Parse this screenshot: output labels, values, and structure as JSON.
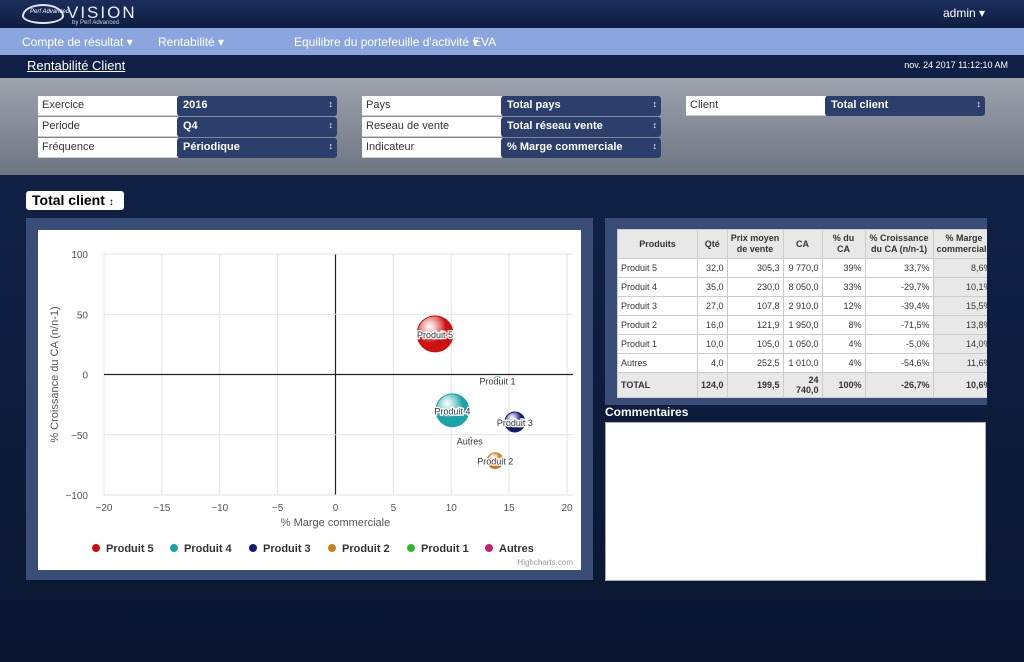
{
  "header": {
    "brand": "Perf Advanced",
    "title": "VISION",
    "subtitle": "by Perf Advanced",
    "user": "admin"
  },
  "nav": [
    "Compte de résultat",
    "Rentabilité",
    "Equilibre du portefeuille d'activité",
    "EVA"
  ],
  "page": {
    "title": "Rentabilité Client",
    "timestamp": "nov. 24 2017 11:12:10 AM"
  },
  "filters": [
    [
      {
        "label": "Exercice",
        "value": "2016"
      },
      {
        "label": "Periode",
        "value": "Q4"
      },
      {
        "label": "Fréquence",
        "value": "Périodique"
      }
    ],
    [
      {
        "label": "Pays",
        "value": "Total pays"
      },
      {
        "label": "Reseau de vente",
        "value": "Total réseau vente"
      },
      {
        "label": "Indicateur",
        "value": "% Marge commerciale"
      }
    ],
    [
      {
        "label": "Client",
        "value": "Total client"
      }
    ]
  ],
  "selector": "Total client",
  "chart_data": {
    "type": "bubble",
    "xlabel": "% Marge commerciale",
    "ylabel": "% Croissance du CA (n/n-1)",
    "xlim": [
      -20,
      20
    ],
    "xticks": [
      {
        "value": -20,
        "label": "−20"
      },
      {
        "value": -15,
        "label": "−15"
      },
      {
        "value": -10,
        "label": "−10"
      },
      {
        "value": -5,
        "label": "−5"
      },
      0,
      5,
      10,
      15,
      20
    ],
    "ylim": [
      -100,
      100
    ],
    "yticks": [
      {
        "value": -100,
        "label": "−100"
      },
      {
        "value": -50,
        "label": "−50"
      },
      0,
      50,
      100
    ],
    "grid": true,
    "series": [
      {
        "name": "Produit 5",
        "color": "#d01010",
        "x": [
          8.6
        ],
        "y": [
          33.7
        ],
        "z": [
          9770
        ]
      },
      {
        "name": "Produit 4",
        "color": "#1aa3a8",
        "x": [
          10.1
        ],
        "y": [
          -29.7
        ],
        "z": [
          8050
        ]
      },
      {
        "name": "Produit 3",
        "color": "#141c6e",
        "x": [
          15.5
        ],
        "y": [
          -39.4
        ],
        "z": [
          2910
        ]
      },
      {
        "name": "Produit 2",
        "color": "#c8801c",
        "x": [
          13.8
        ],
        "y": [
          -71.5
        ],
        "z": [
          1950
        ]
      },
      {
        "name": "Produit 1",
        "color": "#2db82d",
        "x": [
          14.0
        ],
        "y": [
          -5.0
        ],
        "z": [
          1050
        ]
      },
      {
        "name": "Autres",
        "color": "#c8206e",
        "x": [
          11.6
        ],
        "y": [
          -54.6
        ],
        "z": [
          1010
        ]
      }
    ],
    "credits": "Highcharts.com"
  },
  "table": {
    "headers": [
      "Produits",
      "Qté",
      "Prix moyen de vente",
      "CA",
      "% du CA",
      "% Croissance du CA (n/n-1)",
      "% Marge commerciale"
    ],
    "rows": [
      [
        "Produit 5",
        "32,0",
        "305,3",
        "9 770,0",
        "39%",
        "33,7%",
        "8,6%"
      ],
      [
        "Produit 4",
        "35,0",
        "230,0",
        "8 050,0",
        "33%",
        "-29,7%",
        "10,1%"
      ],
      [
        "Produit 3",
        "27,0",
        "107,8",
        "2 910,0",
        "12%",
        "-39,4%",
        "15,5%"
      ],
      [
        "Produit 2",
        "16,0",
        "121,9",
        "1 950,0",
        "8%",
        "-71,5%",
        "13,8%"
      ],
      [
        "Produit 1",
        "10,0",
        "105,0",
        "1 050,0",
        "4%",
        "-5,0%",
        "14,0%"
      ],
      [
        "Autres",
        "4,0",
        "252,5",
        "1 010,0",
        "4%",
        "-54,6%",
        "11,6%"
      ],
      [
        "TOTAL",
        "124,0",
        "199,5",
        "24 740,0",
        "100%",
        "-26,7%",
        "10,6%"
      ]
    ]
  },
  "comments": {
    "title": "Commentaires"
  }
}
